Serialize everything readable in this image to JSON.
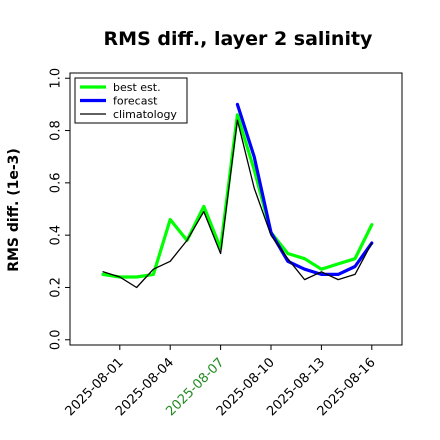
{
  "chart_data": {
    "type": "line",
    "title": "RMS diff., layer 2 salinity",
    "xlabel": "",
    "ylabel": "RMS diff. (1e-3)",
    "ylim": [
      -0.02,
      1.02
    ],
    "yticks": [
      0.0,
      0.2,
      0.4,
      0.6,
      0.8,
      1.0
    ],
    "ytick_labels": [
      "0.0",
      "0.2",
      "0.4",
      "0.6",
      "0.8",
      "1.0"
    ],
    "x": [
      "2025-07-31",
      "2025-08-01",
      "2025-08-02",
      "2025-08-03",
      "2025-08-04",
      "2025-08-05",
      "2025-08-06",
      "2025-08-07",
      "2025-08-08",
      "2025-08-09",
      "2025-08-10",
      "2025-08-11",
      "2025-08-12",
      "2025-08-13",
      "2025-08-14",
      "2025-08-15",
      "2025-08-16"
    ],
    "xticks": [
      "2025-08-01",
      "2025-08-04",
      "2025-08-07",
      "2025-08-10",
      "2025-08-13",
      "2025-08-16"
    ],
    "xtick_colors": [
      "#000000",
      "#000000",
      "#228B22",
      "#000000",
      "#000000",
      "#000000"
    ],
    "grid": false,
    "legend_position": "top-left",
    "series": [
      {
        "name": "best est.",
        "color": "#00ff00",
        "width": 3.2,
        "values": [
          0.25,
          0.24,
          0.24,
          0.25,
          0.46,
          0.38,
          0.51,
          0.35,
          0.86,
          0.65,
          0.41,
          0.33,
          0.31,
          0.27,
          0.29,
          0.31,
          0.44
        ]
      },
      {
        "name": "forecast",
        "color": "#0000ff",
        "width": 3.2,
        "values": [
          null,
          null,
          null,
          null,
          null,
          null,
          null,
          null,
          0.9,
          0.7,
          0.41,
          0.3,
          0.27,
          0.25,
          0.25,
          0.28,
          0.37
        ]
      },
      {
        "name": "climatology",
        "color": "#000000",
        "width": 1.3,
        "values": [
          0.26,
          0.24,
          0.2,
          0.27,
          0.3,
          0.38,
          0.49,
          0.33,
          0.84,
          0.58,
          0.4,
          0.31,
          0.23,
          0.26,
          0.23,
          0.25,
          0.37
        ]
      }
    ]
  }
}
